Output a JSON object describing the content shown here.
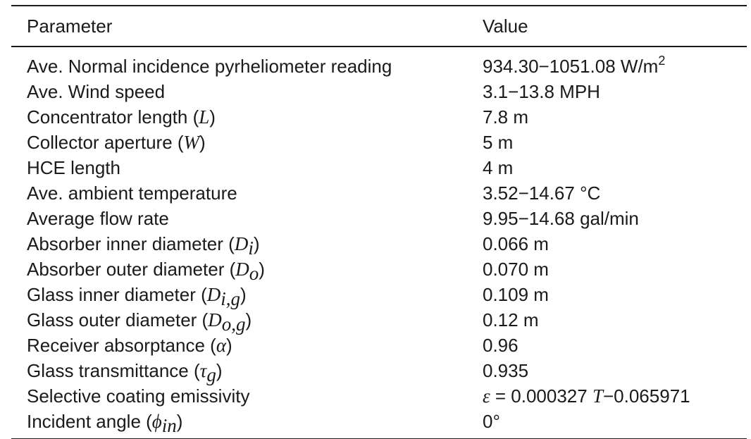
{
  "table": {
    "header": {
      "parameter": "Parameter",
      "value": "Value"
    },
    "rows": [
      {
        "param_text": "Ave. Normal incidence pyrheliometer reading",
        "value_text": "934.30−1051.08 W/m",
        "value_sup": "2"
      },
      {
        "param_text": "Ave. Wind speed",
        "value_text": "3.1−13.8 MPH"
      },
      {
        "param_text": "Concentrator length (",
        "param_sym": "L",
        "param_close": ")",
        "value_text": "7.8 m"
      },
      {
        "param_text": "Collector aperture (",
        "param_sym": "W",
        "param_close": ")",
        "value_text": "5 m"
      },
      {
        "param_text": "HCE length",
        "value_text": "4 m"
      },
      {
        "param_text": "Ave. ambient temperature",
        "value_text": "3.52−14.67 °C"
      },
      {
        "param_text": "Average flow rate",
        "value_text": "9.95−14.68 gal/min"
      },
      {
        "param_text": "Absorber inner diameter (",
        "param_sym": "D",
        "param_sub": "i",
        "param_close": ")",
        "value_text": "0.066 m"
      },
      {
        "param_text": "Absorber outer diameter (",
        "param_sym": "D",
        "param_sub": "o",
        "param_close": ")",
        "value_text": "0.070 m"
      },
      {
        "param_text": "Glass inner diameter (",
        "param_sym": "D",
        "param_sub": "i,g",
        "param_close": ")",
        "value_text": "0.109 m"
      },
      {
        "param_text": "Glass outer diameter (",
        "param_sym": "D",
        "param_sub": "o,g",
        "param_close": ")",
        "value_text": "0.12 m"
      },
      {
        "param_text": "Receiver absorptance (",
        "param_sym": "α",
        "param_close": ")",
        "value_text": "0.96"
      },
      {
        "param_text": "Glass transmittance (",
        "param_sym": "τ",
        "param_sub": "g",
        "param_close": ")",
        "value_text": "0.935"
      },
      {
        "param_text": "Selective coating emissivity",
        "value_sym": "ε",
        "value_text": " = 0.000327 ",
        "value_sym2": "T",
        "value_text2": "−0.065971"
      },
      {
        "param_text": "Incident angle (",
        "param_sym": "ϕ",
        "param_sub": "in",
        "param_close": ")",
        "value_text": "0°"
      }
    ]
  }
}
